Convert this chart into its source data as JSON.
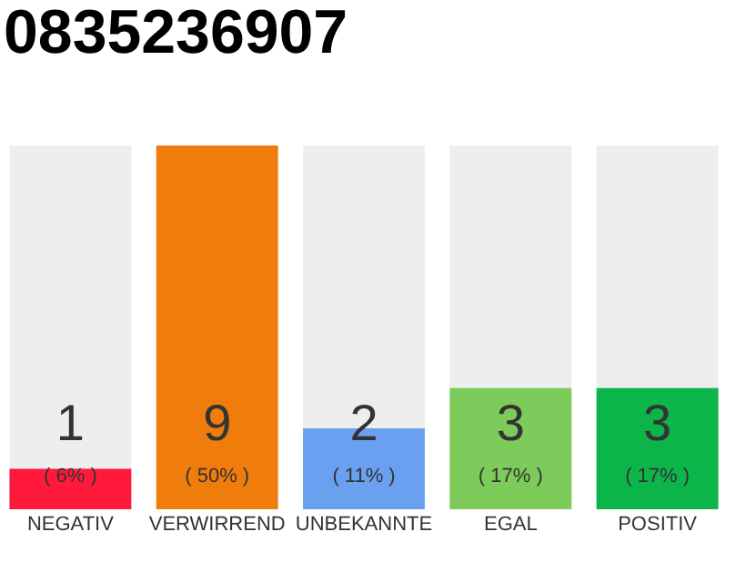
{
  "chart_data": {
    "type": "bar",
    "title": "0835236907",
    "categories": [
      "NEGATIV",
      "VERWIRREND",
      "UNBEKANNTE",
      "EGAL",
      "POSITIV"
    ],
    "values": [
      1,
      9,
      2,
      3,
      3
    ],
    "colors": [
      "#ff1a3c",
      "#f07c0c",
      "#6aa0f0",
      "#7dcb5b",
      "#0cb54a"
    ],
    "ylim": [
      0,
      9
    ],
    "tick_labels": "x",
    "grid": false,
    "data_labels": true,
    "annotations": [
      "( 6% )",
      "( 50% )",
      "( 11% )",
      "( 17% )",
      "( 17% )"
    ]
  }
}
